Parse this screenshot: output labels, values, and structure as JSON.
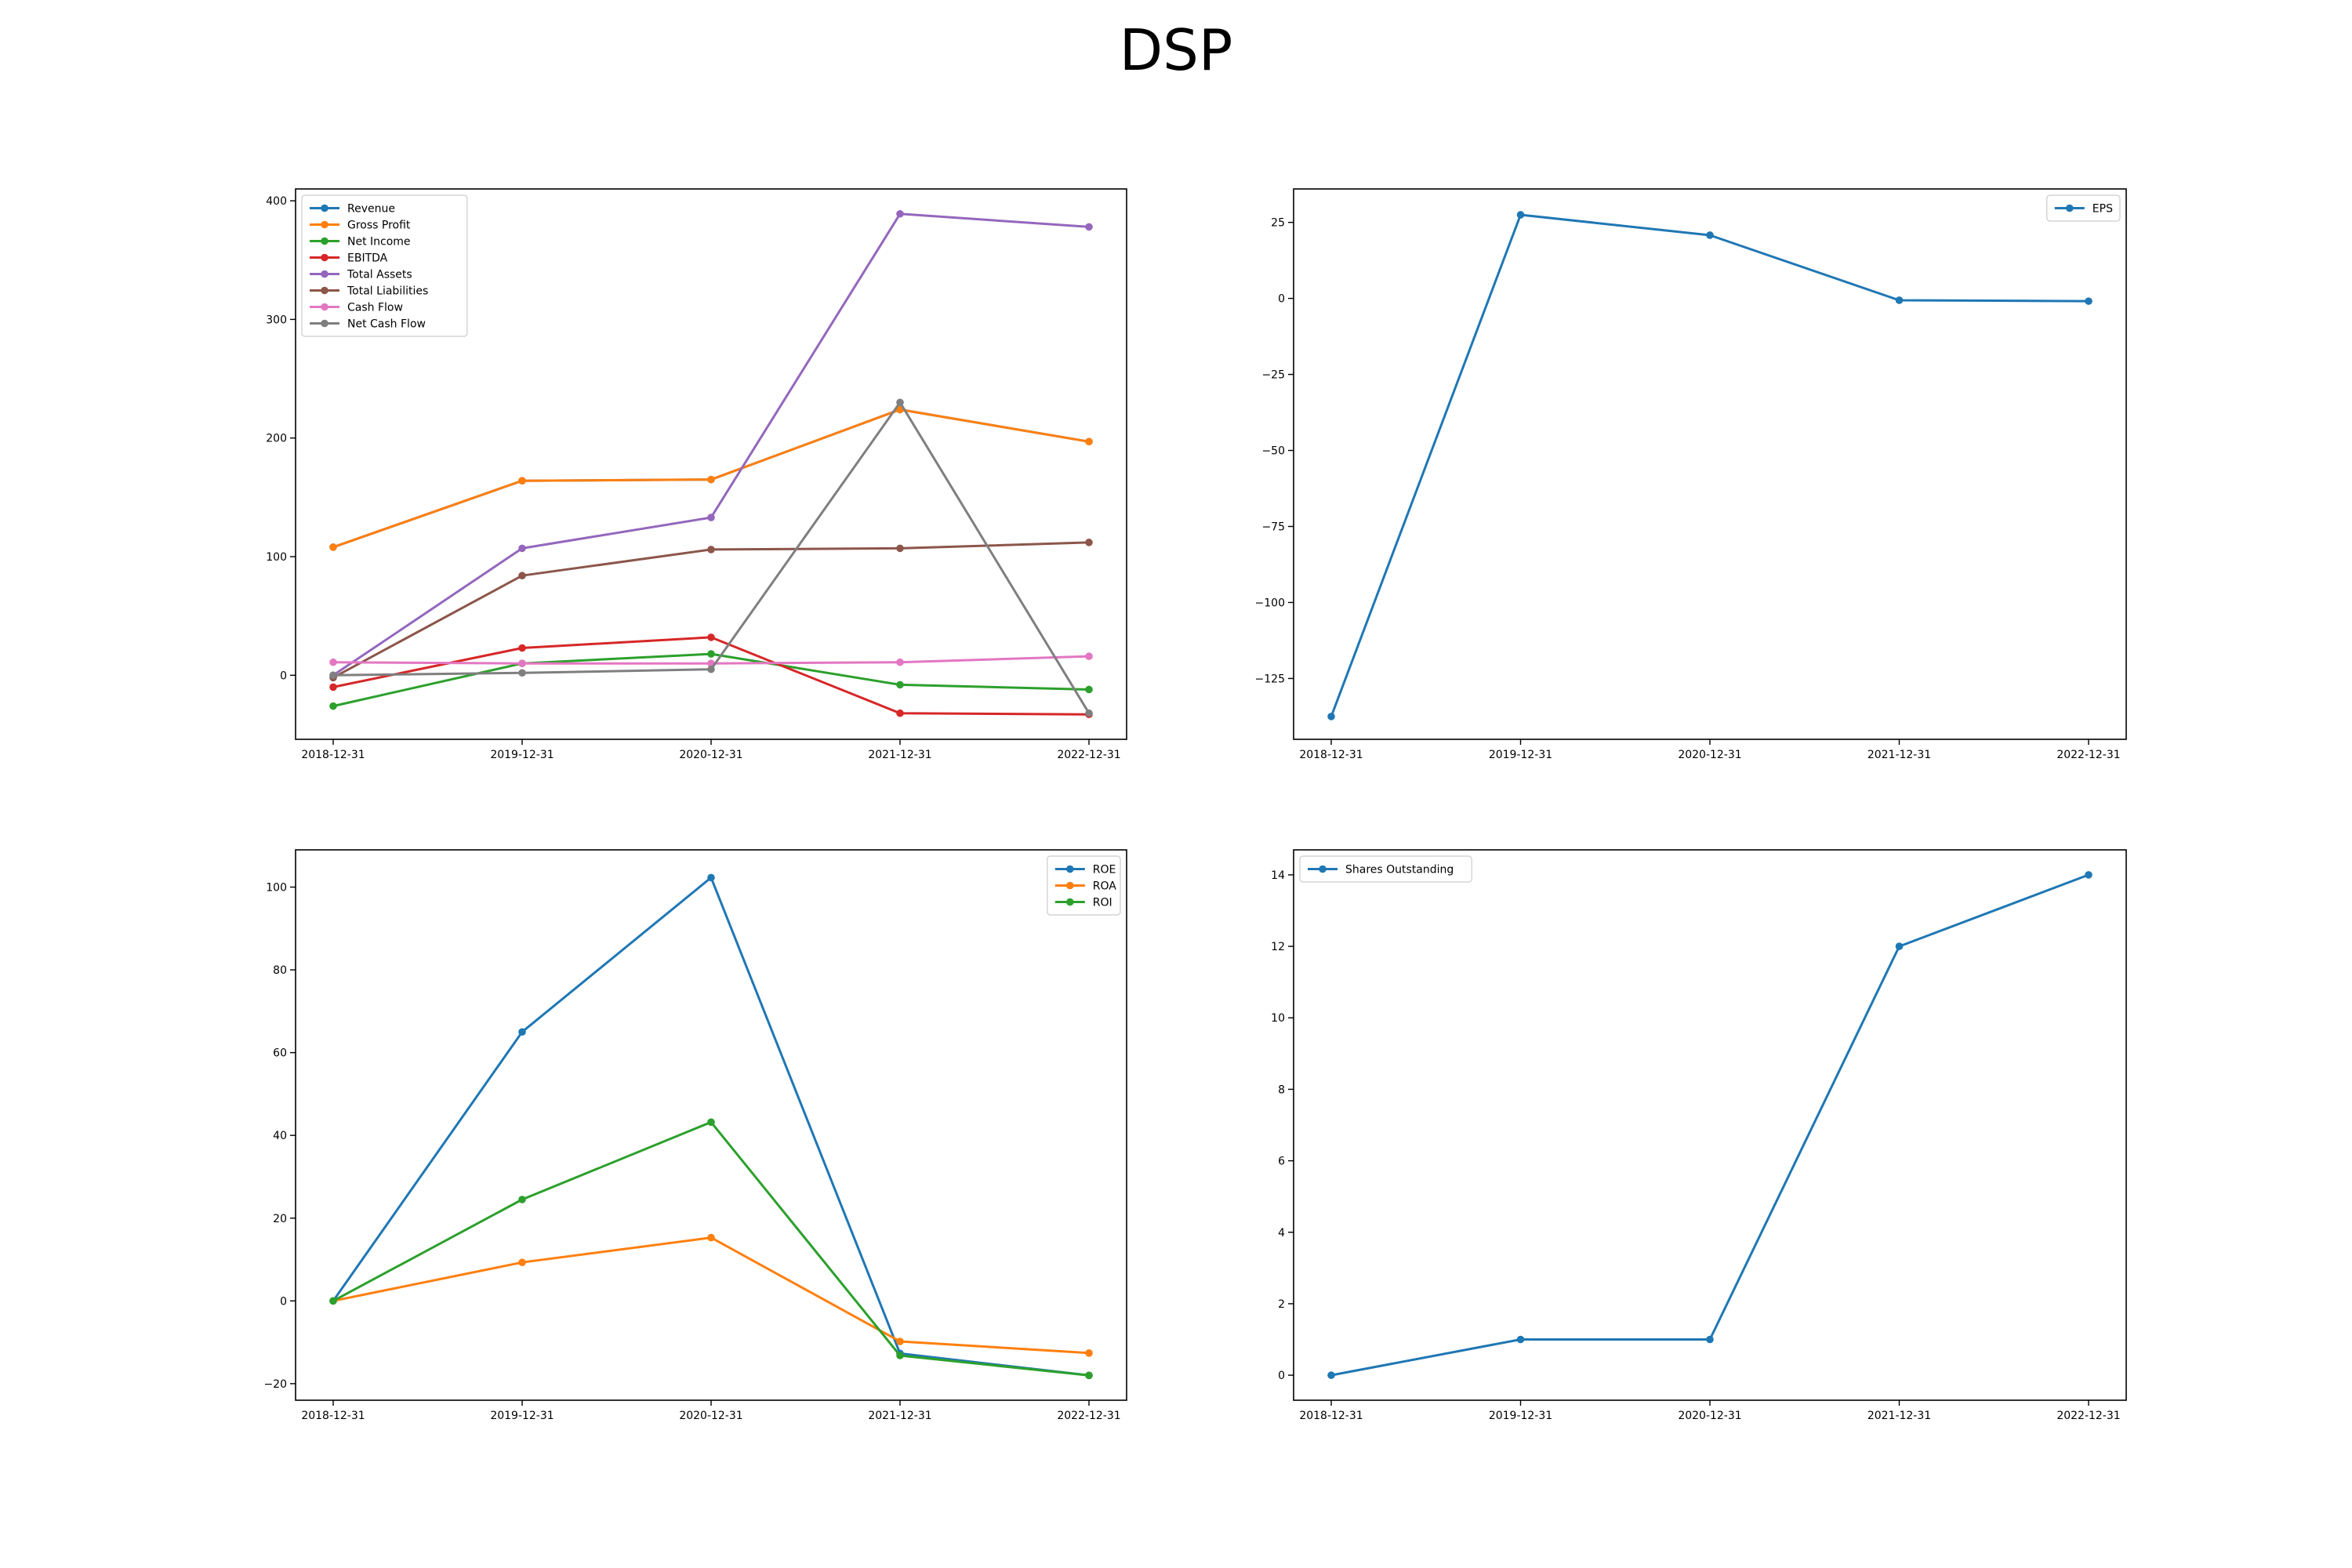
{
  "title": "DSP",
  "chart_data": [
    {
      "type": "line",
      "x": [
        "2018-12-31",
        "2019-12-31",
        "2020-12-31",
        "2021-12-31",
        "2022-12-31"
      ],
      "yticks": [
        0,
        100,
        200,
        300,
        400
      ],
      "ylim": [
        -54,
        410
      ],
      "legend_position": "upper left",
      "grid": false,
      "series": [
        {
          "name": "Revenue",
          "color": "#1f77b4",
          "values": [
            108.0,
            164.0,
            165.0,
            224.0,
            197.0
          ]
        },
        {
          "name": "Gross Profit",
          "color": "#ff7f0e",
          "values": [
            108.0,
            164.0,
            165.0,
            224.0,
            197.0
          ]
        },
        {
          "name": "Net Income",
          "color": "#2ca02c",
          "values": [
            -26.0,
            10.0,
            18.0,
            -8.0,
            -12.0
          ]
        },
        {
          "name": "EBITDA",
          "color": "#d62728",
          "values": [
            -10.0,
            23.0,
            32.0,
            -32.0,
            -33.0
          ]
        },
        {
          "name": "Total Assets",
          "color": "#9467bd",
          "values": [
            0.0,
            107.0,
            133.0,
            389.0,
            378.0
          ]
        },
        {
          "name": "Total Liabilities",
          "color": "#8c564b",
          "values": [
            -2.0,
            84.0,
            106.0,
            107.0,
            112.0
          ]
        },
        {
          "name": "Cash Flow",
          "color": "#e377c2",
          "values": [
            11.0,
            10.0,
            10.0,
            11.0,
            16.0
          ]
        },
        {
          "name": "Net Cash Flow",
          "color": "#7f7f7f",
          "values": [
            0.0,
            2.0,
            5.0,
            230.0,
            -32.0
          ]
        }
      ]
    },
    {
      "type": "line",
      "x": [
        "2018-12-31",
        "2019-12-31",
        "2020-12-31",
        "2021-12-31",
        "2022-12-31"
      ],
      "yticks": [
        -125,
        -100,
        -75,
        -50,
        -25,
        0,
        25
      ],
      "ylim": [
        -145,
        36
      ],
      "legend_position": "upper right",
      "grid": false,
      "series": [
        {
          "name": "EPS",
          "color": "#1f77b4",
          "values": [
            -137.5,
            27.5,
            20.8,
            -0.6,
            -0.9
          ]
        }
      ]
    },
    {
      "type": "line",
      "x": [
        "2018-12-31",
        "2019-12-31",
        "2020-12-31",
        "2021-12-31",
        "2022-12-31"
      ],
      "yticks": [
        -20,
        0,
        20,
        40,
        60,
        80,
        100
      ],
      "ylim": [
        -24,
        109
      ],
      "legend_position": "upper right",
      "grid": false,
      "series": [
        {
          "name": "ROE",
          "color": "#1f77b4",
          "values": [
            0.0,
            65.0,
            102.3,
            -12.7,
            -18.0
          ]
        },
        {
          "name": "ROA",
          "color": "#ff7f0e",
          "values": [
            0.0,
            9.3,
            15.3,
            -9.8,
            -12.6
          ]
        },
        {
          "name": "ROI",
          "color": "#2ca02c",
          "values": [
            0.0,
            24.5,
            43.2,
            -13.2,
            -18.0
          ]
        }
      ]
    },
    {
      "type": "line",
      "x": [
        "2018-12-31",
        "2019-12-31",
        "2020-12-31",
        "2021-12-31",
        "2022-12-31"
      ],
      "yticks": [
        0,
        2,
        4,
        6,
        8,
        10,
        12,
        14
      ],
      "ylim": [
        -0.7,
        14.7
      ],
      "legend_position": "upper left",
      "grid": false,
      "series": [
        {
          "name": "Shares Outstanding",
          "color": "#1f77b4",
          "values": [
            0,
            1,
            1,
            12,
            14
          ]
        }
      ]
    }
  ]
}
